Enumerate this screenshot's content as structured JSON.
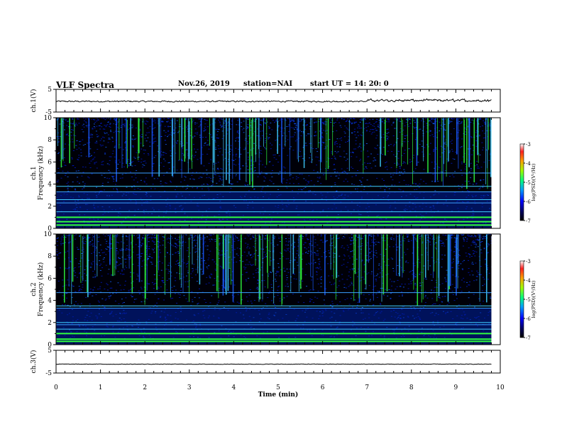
{
  "header": {
    "title": "VLF Spectra",
    "date": "Nov.26, 2019",
    "station": "station=NAI",
    "start": "start  UT =   14: 20: 0"
  },
  "chart_data": [
    {
      "type": "line",
      "name": "ch1-waveform",
      "ylabel": "ch.1(V)",
      "ylim": [
        -5,
        5
      ],
      "yticks": [
        "5",
        "-5"
      ],
      "xlim": [
        0,
        10
      ],
      "note_values": "baseline near -0.5 V, slight increase after 7 min"
    },
    {
      "type": "heatmap",
      "name": "ch1-spectrogram",
      "ylabel": "ch.1\nFrequency  (kHz)",
      "ylim": [
        0,
        10
      ],
      "yticks": [
        "0",
        "2",
        "4",
        "6",
        "8",
        "10"
      ],
      "xlim": [
        0,
        10
      ],
      "colorbar": {
        "label": "log(PSD)(V²/Hz)",
        "ticks": [
          "-3",
          "-4",
          "-5",
          "-6",
          "-7"
        ],
        "range": [
          -7,
          -3
        ]
      },
      "bright_bands_khz": [
        0.3,
        0.6,
        1.0,
        1.5,
        2.3,
        2.6,
        3.3,
        3.8,
        5.0
      ],
      "data_end_min": 9.8
    },
    {
      "type": "heatmap",
      "name": "ch2-spectrogram",
      "ylabel": "ch.2\nFrequency  (kHz)",
      "ylim": [
        0,
        10
      ],
      "yticks": [
        "0",
        "2",
        "4",
        "6",
        "8",
        "10"
      ],
      "xlim": [
        0,
        10
      ],
      "colorbar": {
        "label": "log(PSD)(V²/Hz)",
        "ticks": [
          "-3",
          "-4",
          "-5",
          "-6",
          "-7"
        ],
        "range": [
          -7,
          -3
        ]
      },
      "bright_bands_khz": [
        0.3,
        0.5,
        1.0,
        1.4,
        1.8,
        2.0,
        3.3,
        3.5,
        4.7
      ],
      "data_end_min": 9.8
    },
    {
      "type": "line",
      "name": "ch3-waveform",
      "ylabel": "ch.3(V)",
      "ylim": [
        -5,
        5
      ],
      "yticks": [
        "5",
        "-5"
      ],
      "xlim": [
        0,
        10
      ],
      "note_values": "near constant at about -1 V"
    }
  ],
  "xaxis": {
    "label": "Time  (min)",
    "ticks": [
      "0",
      "1",
      "2",
      "3",
      "4",
      "5",
      "6",
      "7",
      "8",
      "9",
      "10"
    ]
  },
  "colors": {
    "spectro_bg": "#000010",
    "band_green": "#30ff40",
    "band_cyan": "#40d0ff",
    "band_blue": "#2050ff",
    "trace": "#000000"
  }
}
